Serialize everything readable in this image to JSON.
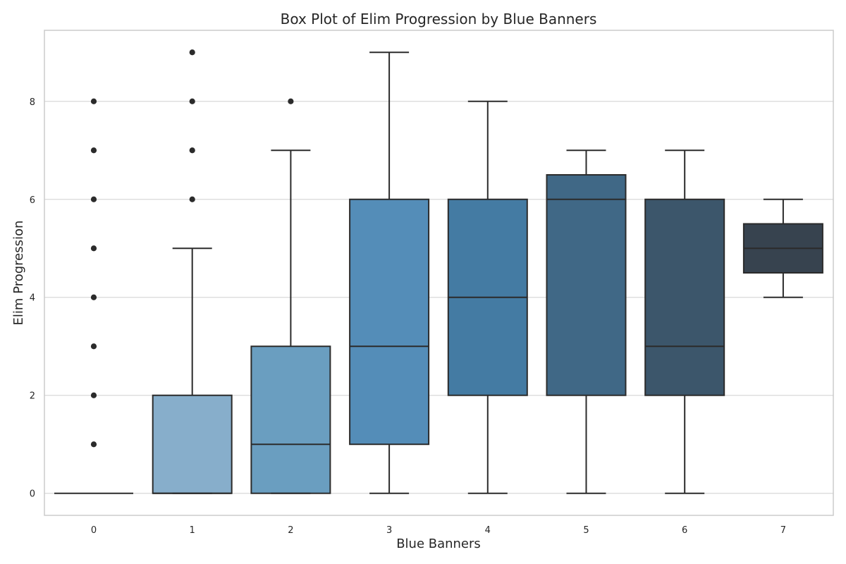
{
  "chart_data": {
    "type": "box",
    "title": "Box Plot of Elim Progression by Blue Banners",
    "xlabel": "Blue Banners",
    "ylabel": "Elim Progression",
    "categories": [
      "0",
      "1",
      "2",
      "3",
      "4",
      "5",
      "6",
      "7"
    ],
    "yticks": [
      "0",
      "2",
      "4",
      "6",
      "8"
    ],
    "ylim": [
      -0.45,
      9.45
    ],
    "grid": true,
    "boxes": [
      {
        "category": "0",
        "whisker_low": 0,
        "q1": 0,
        "median": 0,
        "q3": 0,
        "whisker_high": 0,
        "outliers": [
          1,
          2,
          3,
          4,
          5,
          6,
          7,
          8
        ],
        "color": "#8fb4d2"
      },
      {
        "category": "1",
        "whisker_low": 0,
        "q1": 0,
        "median": 0,
        "q3": 2,
        "whisker_high": 5,
        "outliers": [
          6,
          7,
          8,
          9
        ],
        "color": "#87aecb"
      },
      {
        "category": "2",
        "whisker_low": 0,
        "q1": 0,
        "median": 1,
        "q3": 3,
        "whisker_high": 7,
        "outliers": [
          8
        ],
        "color": "#6a9ec0"
      },
      {
        "category": "3",
        "whisker_low": 0,
        "q1": 1,
        "median": 3,
        "q3": 6,
        "whisker_high": 9,
        "outliers": [],
        "color": "#548db8"
      },
      {
        "category": "4",
        "whisker_low": 0,
        "q1": 2,
        "median": 4,
        "q3": 6,
        "whisker_high": 8,
        "outliers": [],
        "color": "#447ba3"
      },
      {
        "category": "5",
        "whisker_low": 0,
        "q1": 2,
        "median": 6,
        "q3": 6.5,
        "whisker_high": 7,
        "outliers": [],
        "color": "#406886"
      },
      {
        "category": "6",
        "whisker_low": 0,
        "q1": 2,
        "median": 3,
        "q3": 6,
        "whisker_high": 7,
        "outliers": [],
        "color": "#3c566b"
      },
      {
        "category": "7",
        "whisker_low": 4,
        "q1": 4.5,
        "median": 5,
        "q3": 5.5,
        "whisker_high": 6,
        "outliers": [],
        "color": "#37434f"
      }
    ],
    "colors": {
      "grid": "#d9d9d9",
      "frame": "#cccccc",
      "line": "#2b2b2b",
      "text": "#262626"
    }
  }
}
